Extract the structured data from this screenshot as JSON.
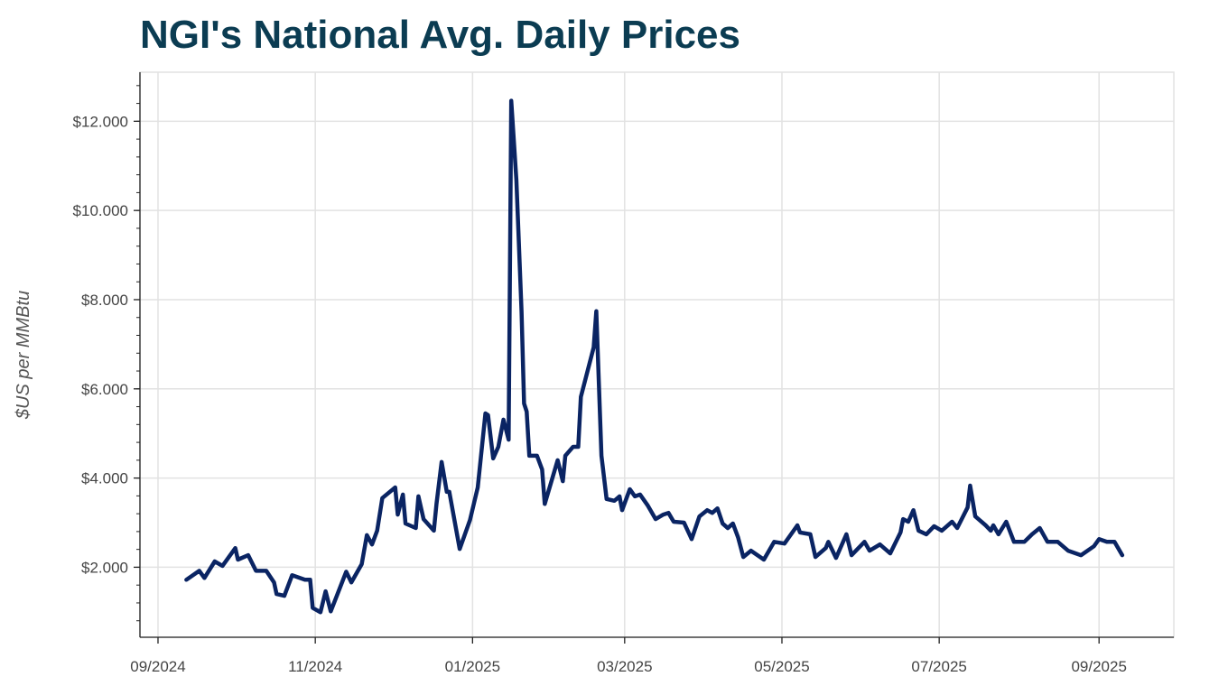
{
  "chart_data": {
    "type": "line",
    "title": "NGI's National Avg. Daily Prices",
    "xlabel": "",
    "ylabel": "$US per MMBtu",
    "xlim": [
      "2024-08-25",
      "2025-09-30"
    ],
    "ylim": [
      0.43,
      13.1
    ],
    "grid": true,
    "line_color": "#0a2463",
    "x_ticks": [
      {
        "date": "2024-09-01",
        "label": "09/2024"
      },
      {
        "date": "2024-11-01",
        "label": "11/2024"
      },
      {
        "date": "2025-01-01",
        "label": "01/2025"
      },
      {
        "date": "2025-03-01",
        "label": "03/2025"
      },
      {
        "date": "2025-05-01",
        "label": "05/2025"
      },
      {
        "date": "2025-07-01",
        "label": "07/2025"
      },
      {
        "date": "2025-09-01",
        "label": "09/2025"
      }
    ],
    "y_ticks": [
      {
        "value": 2,
        "label": "$2.000"
      },
      {
        "value": 4,
        "label": "$4.000"
      },
      {
        "value": 6,
        "label": "$6.000"
      },
      {
        "value": 8,
        "label": "$8.000"
      },
      {
        "value": 10,
        "label": "$10.000"
      },
      {
        "value": 12,
        "label": "$12.000"
      }
    ],
    "series": [
      {
        "points": [
          [
            "2024-09-12",
            1.72
          ],
          [
            "2024-09-17",
            1.92
          ],
          [
            "2024-09-19",
            1.76
          ],
          [
            "2024-09-23",
            2.13
          ],
          [
            "2024-09-26",
            2.03
          ],
          [
            "2024-10-01",
            2.43
          ],
          [
            "2024-10-02",
            2.17
          ],
          [
            "2024-10-06",
            2.27
          ],
          [
            "2024-10-09",
            1.92
          ],
          [
            "2024-10-13",
            1.92
          ],
          [
            "2024-10-16",
            1.66
          ],
          [
            "2024-10-17",
            1.4
          ],
          [
            "2024-10-20",
            1.36
          ],
          [
            "2024-10-23",
            1.82
          ],
          [
            "2024-10-26",
            1.76
          ],
          [
            "2024-10-28",
            1.72
          ],
          [
            "2024-10-30",
            1.72
          ],
          [
            "2024-10-31",
            1.09
          ],
          [
            "2024-11-03",
            0.99
          ],
          [
            "2024-11-05",
            1.46
          ],
          [
            "2024-11-07",
            1.01
          ],
          [
            "2024-11-13",
            1.9
          ],
          [
            "2024-11-15",
            1.66
          ],
          [
            "2024-11-19",
            2.07
          ],
          [
            "2024-11-21",
            2.72
          ],
          [
            "2024-11-23",
            2.51
          ],
          [
            "2024-11-25",
            2.82
          ],
          [
            "2024-11-27",
            3.55
          ],
          [
            "2024-12-02",
            3.79
          ],
          [
            "2024-12-03",
            3.18
          ],
          [
            "2024-12-05",
            3.63
          ],
          [
            "2024-12-06",
            2.98
          ],
          [
            "2024-12-10",
            2.88
          ],
          [
            "2024-12-11",
            3.59
          ],
          [
            "2024-12-13",
            3.08
          ],
          [
            "2024-12-17",
            2.82
          ],
          [
            "2024-12-18",
            3.42
          ],
          [
            "2024-12-20",
            4.36
          ],
          [
            "2024-12-22",
            3.69
          ],
          [
            "2024-12-23",
            3.69
          ],
          [
            "2024-12-27",
            2.41
          ],
          [
            "2024-12-31",
            3.06
          ],
          [
            "2025-01-03",
            3.79
          ],
          [
            "2025-01-06",
            5.45
          ],
          [
            "2025-01-07",
            5.41
          ],
          [
            "2025-01-09",
            4.44
          ],
          [
            "2025-01-11",
            4.7
          ],
          [
            "2025-01-13",
            5.31
          ],
          [
            "2025-01-15",
            4.86
          ],
          [
            "2025-01-16",
            12.46
          ],
          [
            "2025-01-18",
            10.68
          ],
          [
            "2025-01-20",
            7.74
          ],
          [
            "2025-01-21",
            5.67
          ],
          [
            "2025-01-22",
            5.49
          ],
          [
            "2025-01-23",
            4.5
          ],
          [
            "2025-01-26",
            4.5
          ],
          [
            "2025-01-28",
            4.19
          ],
          [
            "2025-01-29",
            3.42
          ],
          [
            "2025-02-03",
            4.4
          ],
          [
            "2025-02-05",
            3.93
          ],
          [
            "2025-02-06",
            4.5
          ],
          [
            "2025-02-09",
            4.7
          ],
          [
            "2025-02-11",
            4.7
          ],
          [
            "2025-02-12",
            5.82
          ],
          [
            "2025-02-17",
            6.93
          ],
          [
            "2025-02-18",
            7.74
          ],
          [
            "2025-02-20",
            4.5
          ],
          [
            "2025-02-22",
            3.53
          ],
          [
            "2025-02-25",
            3.49
          ],
          [
            "2025-02-27",
            3.59
          ],
          [
            "2025-02-28",
            3.28
          ],
          [
            "2025-03-03",
            3.75
          ],
          [
            "2025-03-05",
            3.59
          ],
          [
            "2025-03-07",
            3.63
          ],
          [
            "2025-03-10",
            3.38
          ],
          [
            "2025-03-13",
            3.08
          ],
          [
            "2025-03-16",
            3.18
          ],
          [
            "2025-03-18",
            3.22
          ],
          [
            "2025-03-20",
            3.02
          ],
          [
            "2025-03-24",
            3.0
          ],
          [
            "2025-03-27",
            2.63
          ],
          [
            "2025-03-30",
            3.14
          ],
          [
            "2025-04-02",
            3.28
          ],
          [
            "2025-04-04",
            3.22
          ],
          [
            "2025-04-06",
            3.32
          ],
          [
            "2025-04-08",
            2.98
          ],
          [
            "2025-04-10",
            2.88
          ],
          [
            "2025-04-12",
            2.98
          ],
          [
            "2025-04-14",
            2.67
          ],
          [
            "2025-04-16",
            2.23
          ],
          [
            "2025-04-19",
            2.37
          ],
          [
            "2025-04-24",
            2.17
          ],
          [
            "2025-04-28",
            2.57
          ],
          [
            "2025-05-02",
            2.53
          ],
          [
            "2025-05-07",
            2.94
          ],
          [
            "2025-05-08",
            2.78
          ],
          [
            "2025-05-12",
            2.74
          ],
          [
            "2025-05-14",
            2.23
          ],
          [
            "2025-05-18",
            2.43
          ],
          [
            "2025-05-19",
            2.57
          ],
          [
            "2025-05-22",
            2.21
          ],
          [
            "2025-05-26",
            2.74
          ],
          [
            "2025-05-28",
            2.27
          ],
          [
            "2025-06-02",
            2.57
          ],
          [
            "2025-06-04",
            2.37
          ],
          [
            "2025-06-08",
            2.51
          ],
          [
            "2025-06-12",
            2.31
          ],
          [
            "2025-06-16",
            2.78
          ],
          [
            "2025-06-17",
            3.08
          ],
          [
            "2025-06-19",
            3.02
          ],
          [
            "2025-06-21",
            3.28
          ],
          [
            "2025-06-23",
            2.82
          ],
          [
            "2025-06-26",
            2.74
          ],
          [
            "2025-06-29",
            2.92
          ],
          [
            "2025-07-02",
            2.82
          ],
          [
            "2025-07-06",
            3.02
          ],
          [
            "2025-07-08",
            2.88
          ],
          [
            "2025-07-12",
            3.34
          ],
          [
            "2025-07-13",
            3.83
          ],
          [
            "2025-07-15",
            3.14
          ],
          [
            "2025-07-19",
            2.94
          ],
          [
            "2025-07-21",
            2.82
          ],
          [
            "2025-07-22",
            2.94
          ],
          [
            "2025-07-24",
            2.74
          ],
          [
            "2025-07-27",
            3.02
          ],
          [
            "2025-07-30",
            2.57
          ],
          [
            "2025-08-03",
            2.57
          ],
          [
            "2025-08-06",
            2.74
          ],
          [
            "2025-08-09",
            2.88
          ],
          [
            "2025-08-12",
            2.57
          ],
          [
            "2025-08-16",
            2.57
          ],
          [
            "2025-08-20",
            2.37
          ],
          [
            "2025-08-25",
            2.27
          ],
          [
            "2025-08-30",
            2.47
          ],
          [
            "2025-09-01",
            2.63
          ],
          [
            "2025-09-04",
            2.57
          ],
          [
            "2025-09-07",
            2.57
          ],
          [
            "2025-09-10",
            2.27
          ]
        ]
      }
    ]
  }
}
